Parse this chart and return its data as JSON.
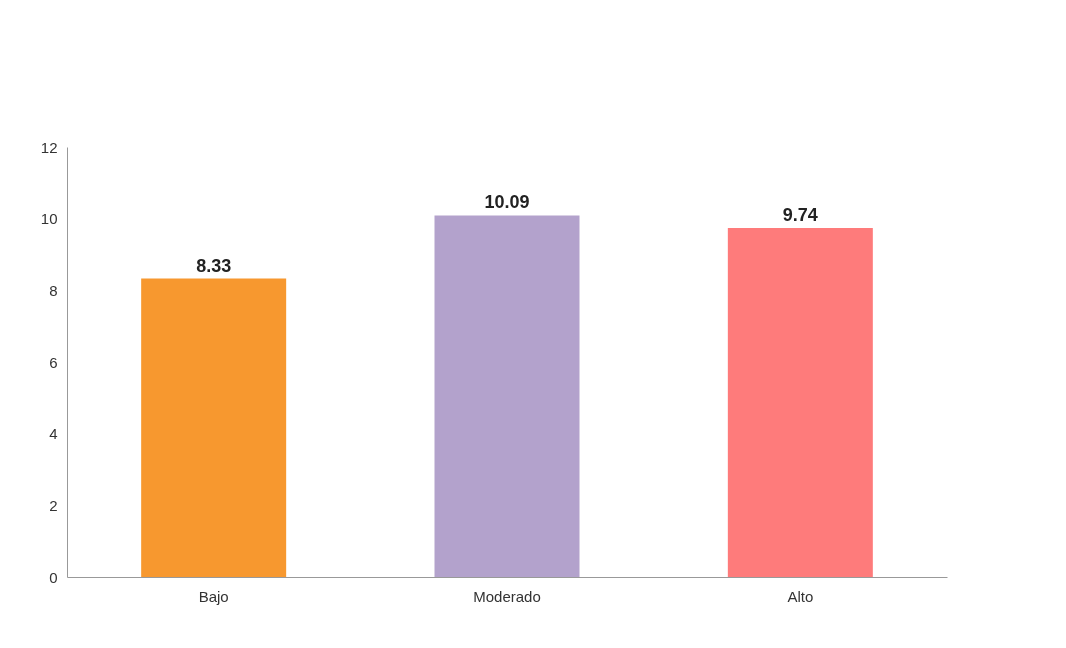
{
  "chart_data": {
    "type": "bar",
    "categories": [
      "Bajo",
      "Moderado",
      "Alto"
    ],
    "values": [
      8.33,
      10.09,
      9.74
    ],
    "colors": [
      "#f7982f",
      "#b3a2cc",
      "#fe7b7b"
    ],
    "ylim": [
      0,
      12
    ],
    "yticks": [
      0,
      2,
      4,
      6,
      8,
      10,
      12
    ],
    "grid": false,
    "data_labels": true
  }
}
